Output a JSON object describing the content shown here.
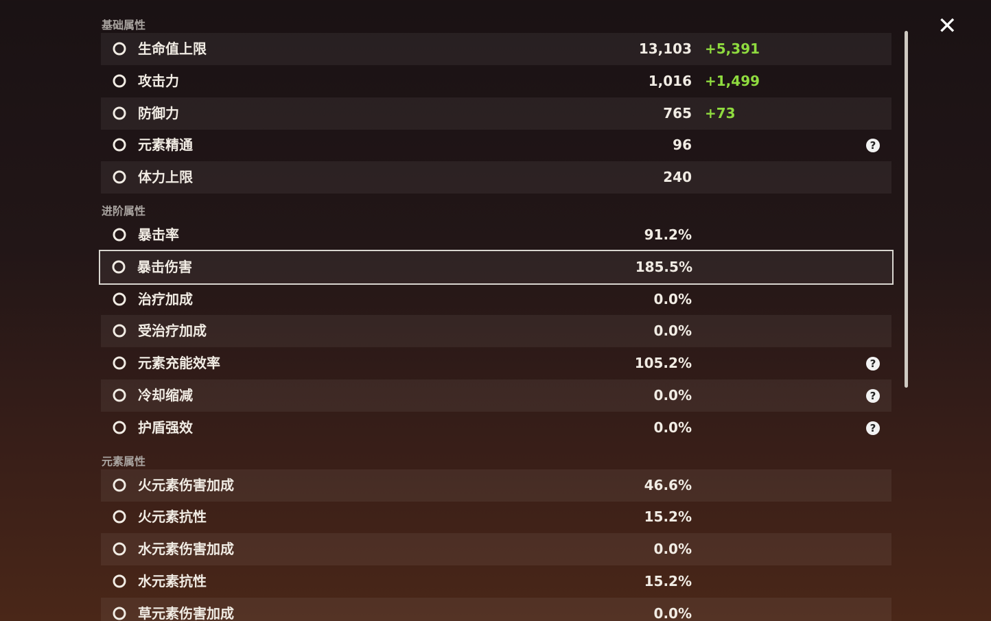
{
  "close_label": "✕",
  "sections": [
    {
      "title": "基础属性",
      "rows": [
        {
          "label": "生命值上限",
          "value": "13,103",
          "bonus": "+5,391"
        },
        {
          "label": "攻击力",
          "value": "1,016",
          "bonus": "+1,499"
        },
        {
          "label": "防御力",
          "value": "765",
          "bonus": "+73"
        },
        {
          "label": "元素精通",
          "value": "96",
          "help": true
        },
        {
          "label": "体力上限",
          "value": "240"
        }
      ]
    },
    {
      "title": "进阶属性",
      "rows": [
        {
          "label": "暴击率",
          "value": "91.2%"
        },
        {
          "label": "暴击伤害",
          "value": "185.5%",
          "selected": true
        },
        {
          "label": "治疗加成",
          "value": "0.0%"
        },
        {
          "label": "受治疗加成",
          "value": "0.0%"
        },
        {
          "label": "元素充能效率",
          "value": "105.2%",
          "help": true
        },
        {
          "label": "冷却缩减",
          "value": "0.0%",
          "help": true
        },
        {
          "label": "护盾强效",
          "value": "0.0%",
          "help": true
        }
      ]
    },
    {
      "title": "元素属性",
      "rows": [
        {
          "label": "火元素伤害加成",
          "value": "46.6%"
        },
        {
          "label": "火元素抗性",
          "value": "15.2%"
        },
        {
          "label": "水元素伤害加成",
          "value": "0.0%"
        },
        {
          "label": "水元素抗性",
          "value": "15.2%"
        },
        {
          "label": "草元素伤害加成",
          "value": "0.0%"
        }
      ]
    }
  ]
}
